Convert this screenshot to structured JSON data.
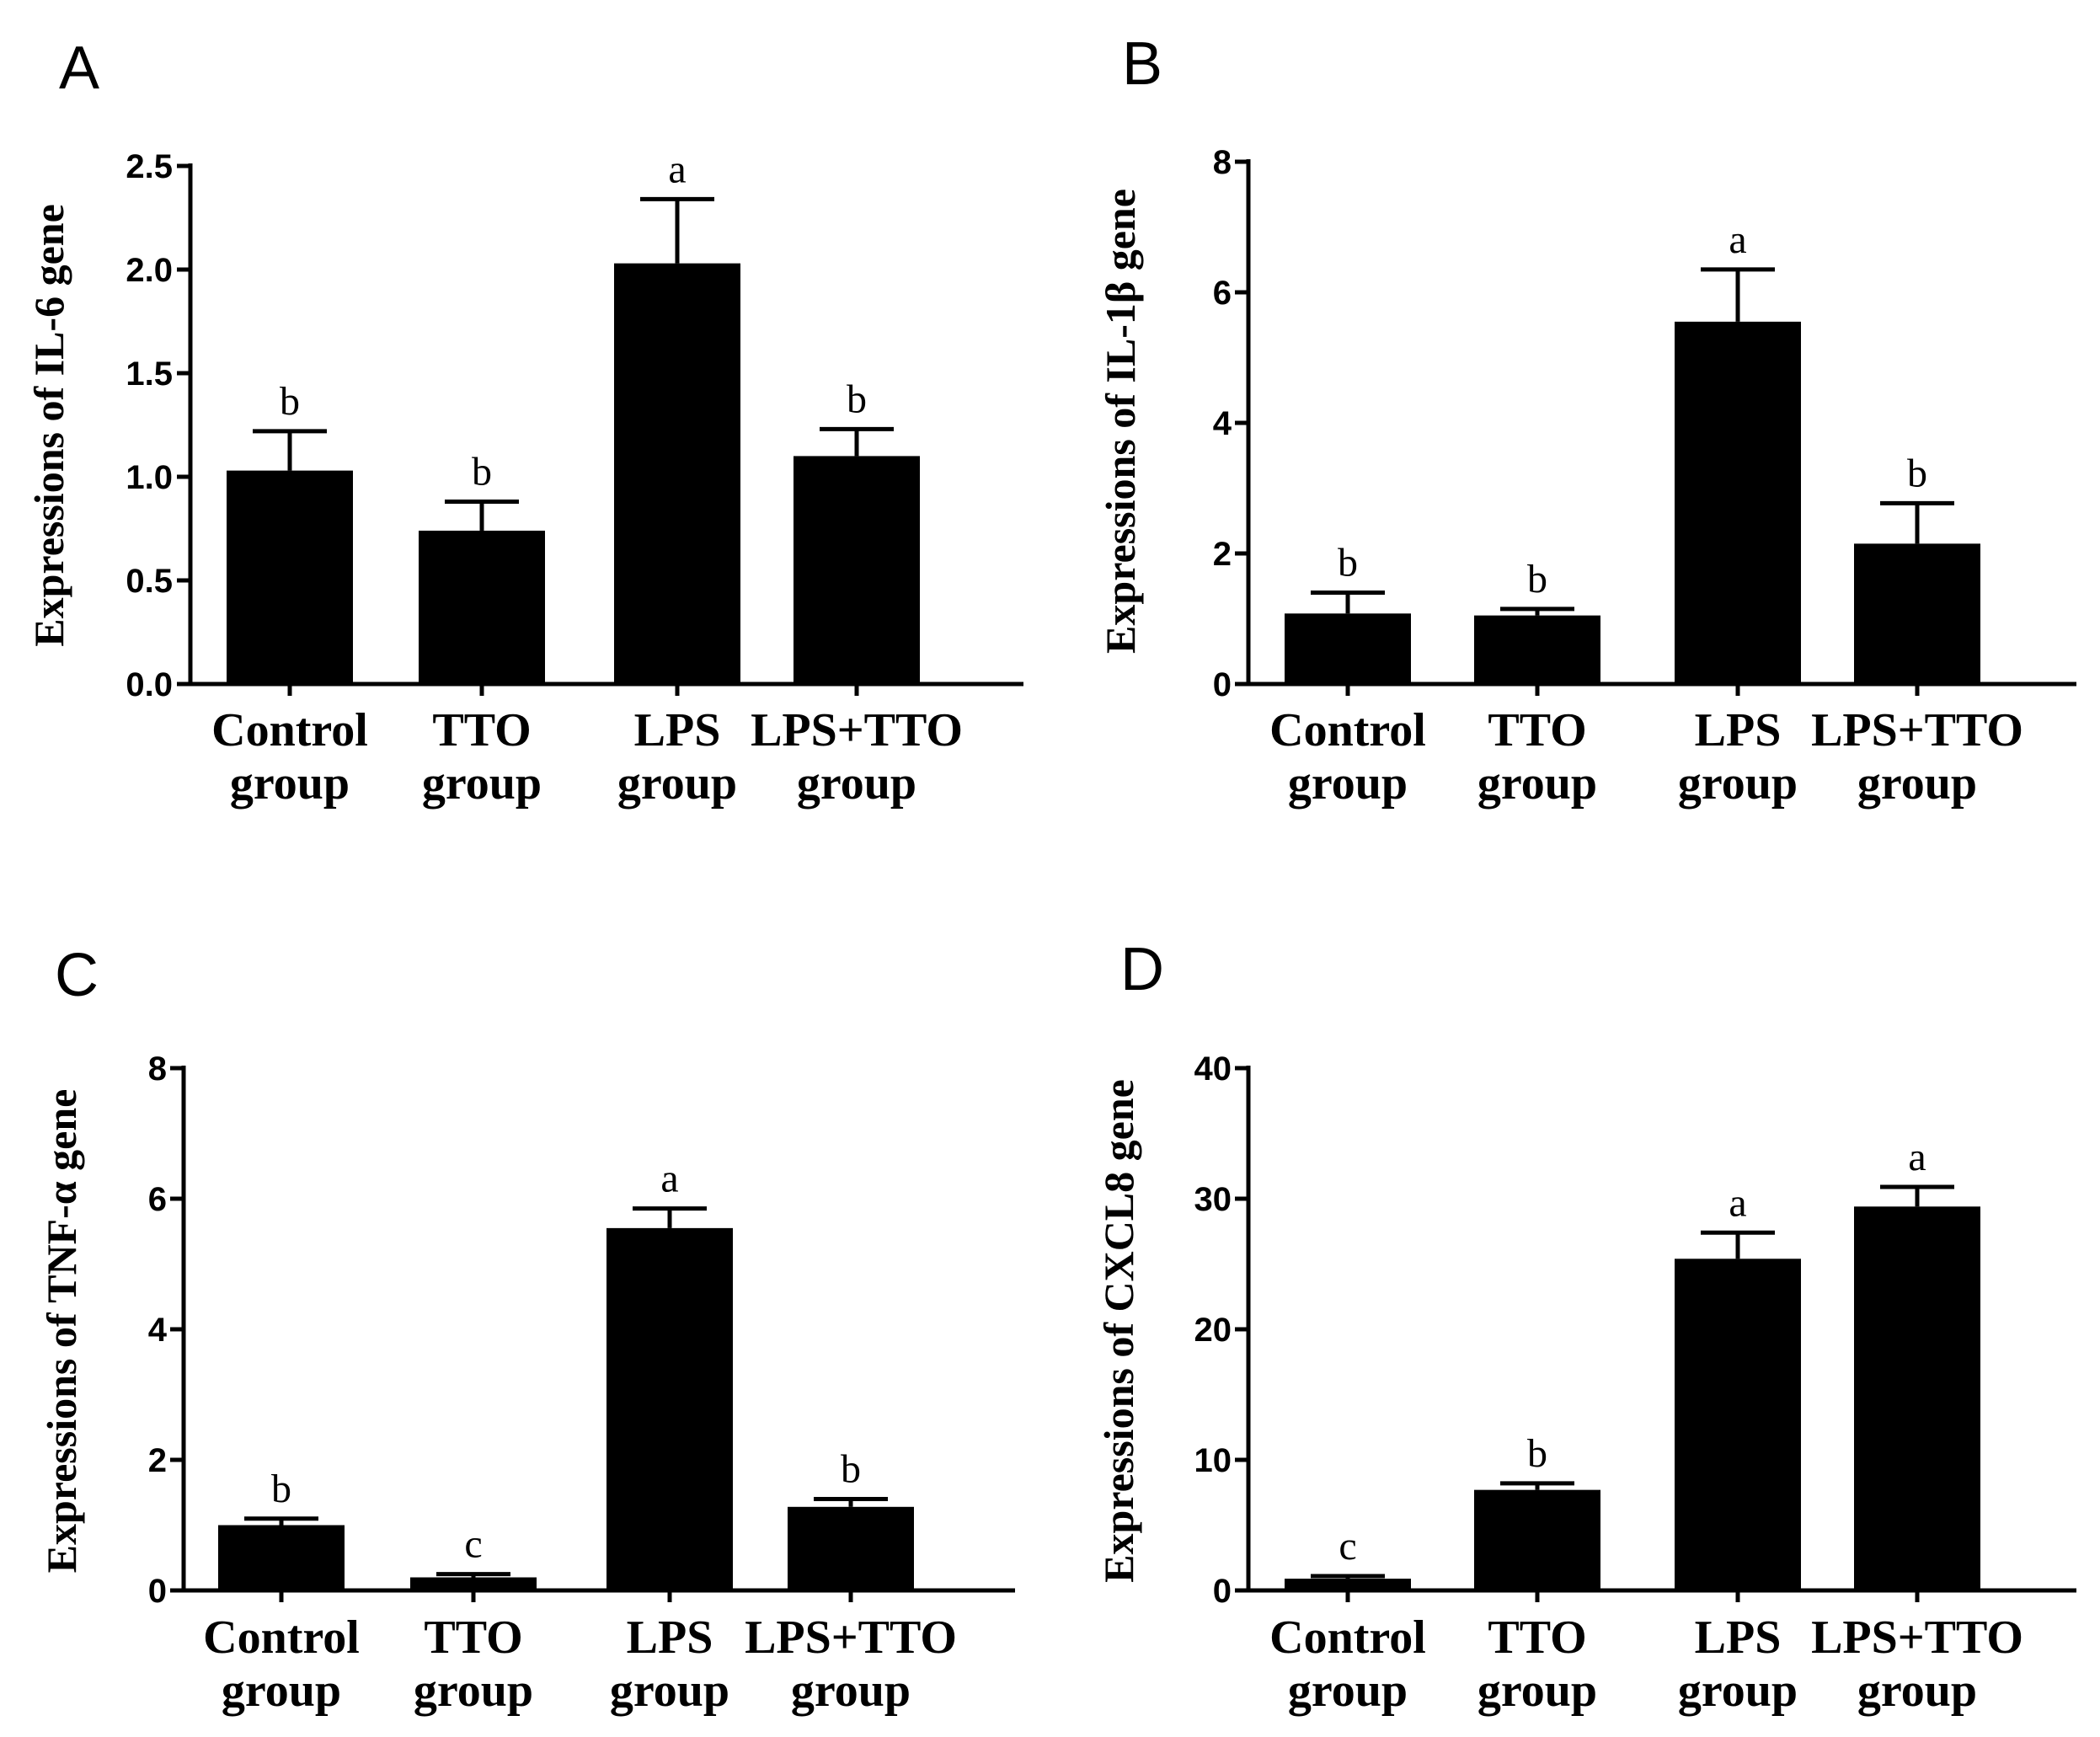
{
  "chart_data": [
    {
      "type": "bar",
      "panel": "A",
      "ylabel": "Expressions of IL-6 gene",
      "ylim": [
        0,
        2.5
      ],
      "ticks": [
        "0.0",
        "0.5",
        "1.0",
        "1.5",
        "2.0",
        "2.5"
      ],
      "categories": [
        {
          "line1": "Control",
          "line2": "group"
        },
        {
          "line1": "TTO",
          "line2": "group"
        },
        {
          "line1": "LPS",
          "line2": "group"
        },
        {
          "line1": "LPS+TTO",
          "line2": "group"
        }
      ],
      "values": [
        1.03,
        0.74,
        2.03,
        1.1
      ],
      "errors": [
        0.19,
        0.14,
        0.31,
        0.13
      ],
      "significance": [
        "b",
        "b",
        "a",
        "b"
      ]
    },
    {
      "type": "bar",
      "panel": "B",
      "ylabel": "Expressions of IL-1β gene",
      "ylim": [
        0,
        8
      ],
      "ticks": [
        "0",
        "2",
        "4",
        "6",
        "8"
      ],
      "categories": [
        {
          "line1": "Control",
          "line2": "group"
        },
        {
          "line1": "TTO",
          "line2": "group"
        },
        {
          "line1": "LPS",
          "line2": "group"
        },
        {
          "line1": "LPS+TTO",
          "line2": "group"
        }
      ],
      "values": [
        1.08,
        1.05,
        5.55,
        2.15
      ],
      "errors": [
        0.32,
        0.1,
        0.8,
        0.62
      ],
      "significance": [
        "b",
        "b",
        "a",
        "b"
      ]
    },
    {
      "type": "bar",
      "panel": "C",
      "ylabel": "Expressions of TNF-α gene",
      "ylim": [
        0,
        8
      ],
      "ticks": [
        "0",
        "2",
        "4",
        "6",
        "8"
      ],
      "categories": [
        {
          "line1": "Control",
          "line2": "group"
        },
        {
          "line1": "TTO",
          "line2": "group"
        },
        {
          "line1": "LPS",
          "line2": "group"
        },
        {
          "line1": "LPS+TTO",
          "line2": "group"
        }
      ],
      "values": [
        1.0,
        0.2,
        5.55,
        1.28
      ],
      "errors": [
        0.1,
        0.05,
        0.3,
        0.12
      ],
      "significance": [
        "b",
        "c",
        "a",
        "b"
      ]
    },
    {
      "type": "bar",
      "panel": "D",
      "ylabel": "Expressions of CXCL8 gene",
      "ylim": [
        0,
        40
      ],
      "ticks": [
        "0",
        "10",
        "20",
        "30",
        "40"
      ],
      "categories": [
        {
          "line1": "Control",
          "line2": "group"
        },
        {
          "line1": "TTO",
          "line2": "group"
        },
        {
          "line1": "LPS",
          "line2": "group"
        },
        {
          "line1": "LPS+TTO",
          "line2": "group"
        }
      ],
      "values": [
        0.9,
        7.7,
        25.4,
        29.4
      ],
      "errors": [
        0.2,
        0.5,
        2.0,
        1.5
      ],
      "significance": [
        "c",
        "b",
        "a",
        "a"
      ]
    }
  ]
}
